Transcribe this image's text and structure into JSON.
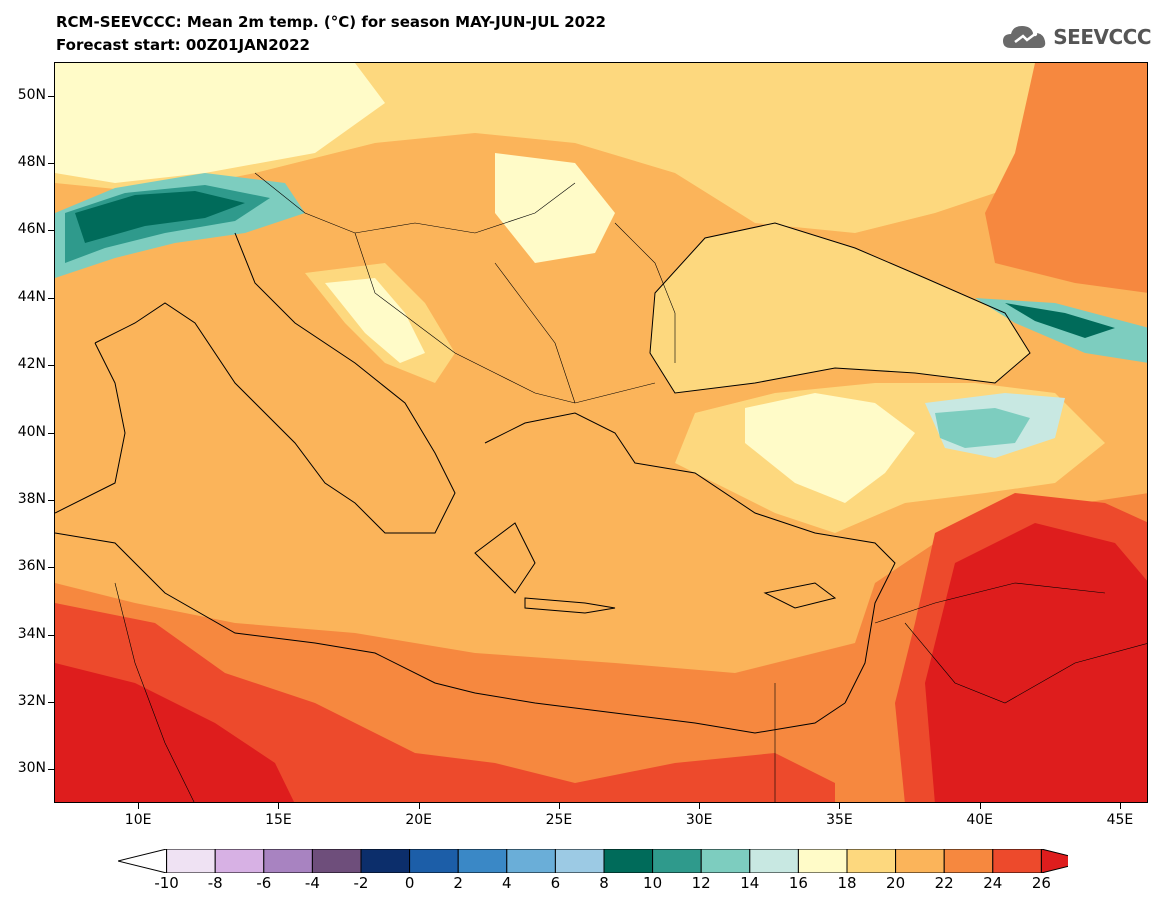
{
  "title_line1": "RCM-SEEVCCC: Mean 2m temp. (°C) for season MAY-JUN-JUL 2022",
  "title_line2": "Forecast start: 00Z01JAN2022",
  "logo": {
    "text": "SEEVCCC",
    "icon": "cloud-logo-icon"
  },
  "map": {
    "lon_range": [
      7,
      46
    ],
    "lat_range": [
      29,
      51
    ],
    "lat_ticks": [
      {
        "value": 30,
        "label": "30N"
      },
      {
        "value": 32,
        "label": "32N"
      },
      {
        "value": 34,
        "label": "34N"
      },
      {
        "value": 36,
        "label": "36N"
      },
      {
        "value": 38,
        "label": "38N"
      },
      {
        "value": 40,
        "label": "40N"
      },
      {
        "value": 42,
        "label": "42N"
      },
      {
        "value": 44,
        "label": "44N"
      },
      {
        "value": 46,
        "label": "46N"
      },
      {
        "value": 48,
        "label": "48N"
      },
      {
        "value": 50,
        "label": "50N"
      }
    ],
    "lon_ticks": [
      {
        "value": 10,
        "label": "10E"
      },
      {
        "value": 15,
        "label": "15E"
      },
      {
        "value": 20,
        "label": "20E"
      },
      {
        "value": 25,
        "label": "25E"
      },
      {
        "value": 30,
        "label": "30E"
      },
      {
        "value": 35,
        "label": "35E"
      },
      {
        "value": 40,
        "label": "40E"
      },
      {
        "value": 45,
        "label": "45E"
      }
    ]
  },
  "colorbar": {
    "labels": [
      "-10",
      "-8",
      "-6",
      "-4",
      "-2",
      "0",
      "2",
      "4",
      "6",
      "8",
      "10",
      "12",
      "14",
      "16",
      "18",
      "20",
      "22",
      "24",
      "26"
    ],
    "colors": [
      "#ffffff",
      "#efe2f3",
      "#d7b1e4",
      "#a883c1",
      "#6e4e7b",
      "#0c2e6b",
      "#1c5ea8",
      "#3a88c6",
      "#6aaed8",
      "#9ccae4",
      "#006b5a",
      "#2f9a8c",
      "#7dcdbf",
      "#c8e8e2",
      "#fffbc8",
      "#fdd87e",
      "#fbb45a",
      "#f6883f",
      "#ed4a2c",
      "#de1d1d"
    ]
  }
}
